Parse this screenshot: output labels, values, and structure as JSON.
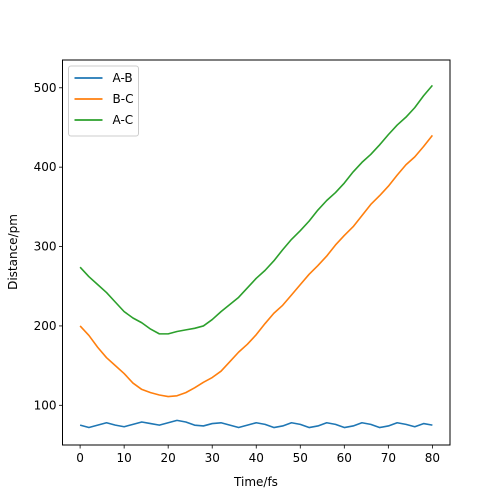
{
  "chart_data": {
    "type": "line",
    "title": "",
    "xlabel": "Time/fs",
    "ylabel": "Distance/pm",
    "xlim": [
      -4,
      84
    ],
    "ylim": [
      50,
      535
    ],
    "xticks": [
      0,
      10,
      20,
      30,
      40,
      50,
      60,
      70,
      80
    ],
    "yticks": [
      100,
      200,
      300,
      400,
      500
    ],
    "grid": false,
    "legend": "top-left",
    "series": [
      {
        "name": "A-B",
        "color": "#1f77b4",
        "x": [
          0,
          2,
          4,
          6,
          8,
          10,
          12,
          14,
          16,
          18,
          20,
          22,
          24,
          26,
          28,
          30,
          32,
          34,
          36,
          38,
          40,
          42,
          44,
          46,
          48,
          50,
          52,
          54,
          56,
          58,
          60,
          62,
          64,
          66,
          68,
          70,
          72,
          74,
          76,
          78,
          80
        ],
        "y": [
          75,
          72,
          75,
          78,
          75,
          73,
          76,
          79,
          77,
          75,
          78,
          81,
          79,
          75,
          74,
          77,
          78,
          75,
          72,
          75,
          78,
          76,
          72,
          74,
          78,
          76,
          72,
          74,
          78,
          76,
          72,
          74,
          78,
          76,
          72,
          74,
          78,
          76,
          73,
          77,
          75
        ]
      },
      {
        "name": "B-C",
        "color": "#ff7f0e",
        "x": [
          0,
          2,
          4,
          6,
          8,
          10,
          12,
          14,
          16,
          18,
          20,
          22,
          24,
          26,
          28,
          30,
          32,
          34,
          36,
          38,
          40,
          42,
          44,
          46,
          48,
          50,
          52,
          54,
          56,
          58,
          60,
          62,
          64,
          66,
          68,
          70,
          72,
          74,
          76,
          78,
          80
        ],
        "y": [
          200,
          188,
          173,
          160,
          150,
          140,
          128,
          120,
          116,
          113,
          111,
          112,
          116,
          122,
          129,
          135,
          143,
          155,
          167,
          177,
          189,
          203,
          216,
          226,
          239,
          252,
          265,
          276,
          288,
          302,
          314,
          325,
          339,
          353,
          364,
          376,
          390,
          403,
          413,
          426,
          440
        ]
      },
      {
        "name": "A-C",
        "color": "#2ca02c",
        "x": [
          0,
          2,
          4,
          6,
          8,
          10,
          12,
          14,
          16,
          18,
          20,
          22,
          24,
          26,
          28,
          30,
          32,
          34,
          36,
          38,
          40,
          42,
          44,
          46,
          48,
          50,
          52,
          54,
          56,
          58,
          60,
          62,
          64,
          66,
          68,
          70,
          72,
          74,
          76,
          78,
          80
        ],
        "y": [
          274,
          262,
          252,
          242,
          230,
          218,
          210,
          204,
          196,
          190,
          190,
          193,
          195,
          197,
          200,
          208,
          218,
          227,
          236,
          248,
          260,
          270,
          282,
          296,
          309,
          320,
          332,
          346,
          358,
          368,
          380,
          394,
          406,
          416,
          428,
          441,
          453,
          463,
          475,
          490,
          503
        ]
      }
    ]
  }
}
